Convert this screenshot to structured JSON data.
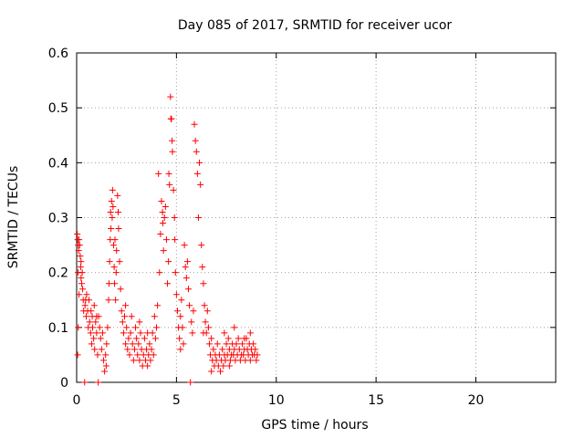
{
  "chart_data": {
    "type": "scatter",
    "title": "Day 085 of 2017, SRMTID for receiver ucor",
    "xlabel": "GPS time / hours",
    "ylabel": "SRMTID / TECUs",
    "xlim": [
      0,
      24
    ],
    "ylim": [
      0,
      0.6
    ],
    "x_ticks": [
      0,
      5,
      10,
      15,
      20
    ],
    "x_tick_labels": [
      "0",
      "5",
      "10",
      "15",
      "20"
    ],
    "y_ticks": [
      0,
      0.1,
      0.2,
      0.3,
      0.4,
      0.5,
      0.6
    ],
    "y_tick_labels": [
      "0",
      "0.1",
      "0.2",
      "0.3",
      "0.4",
      "0.5",
      "0.6"
    ],
    "grid": true,
    "marker": "plus",
    "colors": {
      "series": "#ff0000",
      "axis": "#000000",
      "grid": "#a0a0a0"
    },
    "series": [
      {
        "name": "SRMTID",
        "points": [
          [
            0.03,
            0.27
          ],
          [
            0.05,
            0.26
          ],
          [
            0.08,
            0.25
          ],
          [
            0.1,
            0.24
          ],
          [
            0.12,
            0.26
          ],
          [
            0.15,
            0.25
          ],
          [
            0.18,
            0.23
          ],
          [
            0.05,
            0.05
          ],
          [
            0.08,
            0.1
          ],
          [
            0.12,
            0.16
          ],
          [
            0.2,
            0.21
          ],
          [
            0.22,
            0.19
          ],
          [
            0.25,
            0.18
          ],
          [
            0.28,
            0.2
          ],
          [
            0.3,
            0.17
          ],
          [
            0.33,
            0.15
          ],
          [
            0.35,
            0.13
          ],
          [
            0.4,
            0.0
          ],
          [
            0.42,
            0.14
          ],
          [
            0.45,
            0.15
          ],
          [
            0.48,
            0.12
          ],
          [
            0.5,
            0.16
          ],
          [
            0.55,
            0.13
          ],
          [
            0.58,
            0.1
          ],
          [
            0.62,
            0.15
          ],
          [
            0.65,
            0.11
          ],
          [
            0.7,
            0.09
          ],
          [
            0.72,
            0.13
          ],
          [
            0.75,
            0.07
          ],
          [
            0.78,
            0.12
          ],
          [
            0.8,
            0.1
          ],
          [
            0.85,
            0.08
          ],
          [
            0.88,
            0.14
          ],
          [
            0.9,
            0.06
          ],
          [
            0.95,
            0.11
          ],
          [
            1.0,
            0.09
          ],
          [
            1.05,
            0.05
          ],
          [
            1.08,
            0.0
          ],
          [
            1.1,
            0.12
          ],
          [
            1.15,
            0.1
          ],
          [
            1.2,
            0.08
          ],
          [
            1.25,
            0.06
          ],
          [
            1.3,
            0.09
          ],
          [
            1.35,
            0.04
          ],
          [
            1.4,
            0.02
          ],
          [
            1.45,
            0.05
          ],
          [
            1.48,
            0.03
          ],
          [
            1.5,
            0.07
          ],
          [
            1.55,
            0.1
          ],
          [
            1.6,
            0.15
          ],
          [
            1.62,
            0.18
          ],
          [
            1.65,
            0.22
          ],
          [
            1.68,
            0.26
          ],
          [
            1.7,
            0.31
          ],
          [
            1.72,
            0.28
          ],
          [
            1.75,
            0.33
          ],
          [
            1.78,
            0.3
          ],
          [
            1.8,
            0.35
          ],
          [
            1.82,
            0.32
          ],
          [
            1.85,
            0.25
          ],
          [
            1.88,
            0.21
          ],
          [
            1.9,
            0.18
          ],
          [
            1.92,
            0.26
          ],
          [
            1.95,
            0.15
          ],
          [
            1.98,
            0.2
          ],
          [
            2.0,
            0.24
          ],
          [
            2.05,
            0.34
          ],
          [
            2.08,
            0.31
          ],
          [
            2.1,
            0.28
          ],
          [
            2.15,
            0.22
          ],
          [
            2.2,
            0.17
          ],
          [
            2.25,
            0.13
          ],
          [
            2.3,
            0.11
          ],
          [
            2.35,
            0.09
          ],
          [
            2.4,
            0.12
          ],
          [
            2.45,
            0.07
          ],
          [
            2.5,
            0.1
          ],
          [
            2.55,
            0.06
          ],
          [
            2.6,
            0.08
          ],
          [
            2.65,
            0.05
          ],
          [
            2.7,
            0.09
          ],
          [
            2.75,
            0.12
          ],
          [
            2.8,
            0.07
          ],
          [
            2.85,
            0.04
          ],
          [
            2.9,
            0.06
          ],
          [
            2.95,
            0.1
          ],
          [
            3.0,
            0.08
          ],
          [
            3.05,
            0.05
          ],
          [
            3.1,
            0.07
          ],
          [
            3.15,
            0.04
          ],
          [
            3.2,
            0.09
          ],
          [
            3.25,
            0.06
          ],
          [
            3.3,
            0.03
          ],
          [
            3.35,
            0.05
          ],
          [
            3.4,
            0.08
          ],
          [
            3.45,
            0.04
          ],
          [
            3.5,
            0.06
          ],
          [
            3.55,
            0.03
          ],
          [
            3.6,
            0.05
          ],
          [
            3.65,
            0.07
          ],
          [
            3.7,
            0.04
          ],
          [
            3.75,
            0.06
          ],
          [
            3.8,
            0.09
          ],
          [
            3.85,
            0.05
          ],
          [
            3.9,
            0.12
          ],
          [
            3.95,
            0.08
          ],
          [
            4.0,
            0.1
          ],
          [
            4.05,
            0.14
          ],
          [
            4.1,
            0.38
          ],
          [
            4.15,
            0.2
          ],
          [
            4.2,
            0.27
          ],
          [
            4.25,
            0.33
          ],
          [
            4.3,
            0.31
          ],
          [
            4.32,
            0.29
          ],
          [
            4.35,
            0.24
          ],
          [
            4.4,
            0.3
          ],
          [
            4.45,
            0.32
          ],
          [
            4.5,
            0.26
          ],
          [
            4.55,
            0.18
          ],
          [
            4.6,
            0.22
          ],
          [
            4.62,
            0.38
          ],
          [
            4.65,
            0.36
          ],
          [
            4.7,
            0.52
          ],
          [
            4.72,
            0.48
          ],
          [
            4.75,
            0.48
          ],
          [
            4.78,
            0.44
          ],
          [
            4.8,
            0.42
          ],
          [
            4.85,
            0.35
          ],
          [
            4.9,
            0.3
          ],
          [
            4.92,
            0.26
          ],
          [
            4.95,
            0.2
          ],
          [
            5.0,
            0.16
          ],
          [
            5.05,
            0.13
          ],
          [
            5.1,
            0.1
          ],
          [
            5.15,
            0.08
          ],
          [
            5.2,
            0.12
          ],
          [
            5.25,
            0.15
          ],
          [
            5.3,
            0.1
          ],
          [
            5.35,
            0.07
          ],
          [
            5.4,
            0.25
          ],
          [
            5.45,
            0.21
          ],
          [
            5.5,
            0.19
          ],
          [
            5.55,
            0.22
          ],
          [
            5.6,
            0.17
          ],
          [
            5.65,
            0.14
          ],
          [
            5.7,
            0.0
          ],
          [
            5.75,
            0.11
          ],
          [
            5.8,
            0.09
          ],
          [
            5.85,
            0.13
          ],
          [
            5.9,
            0.47
          ],
          [
            5.95,
            0.44
          ],
          [
            6.0,
            0.42
          ],
          [
            6.05,
            0.38
          ],
          [
            6.1,
            0.3
          ],
          [
            6.15,
            0.4
          ],
          [
            6.2,
            0.36
          ],
          [
            6.25,
            0.25
          ],
          [
            6.3,
            0.21
          ],
          [
            6.35,
            0.18
          ],
          [
            6.4,
            0.14
          ],
          [
            6.45,
            0.11
          ],
          [
            6.5,
            0.09
          ],
          [
            6.55,
            0.13
          ],
          [
            6.6,
            0.1
          ],
          [
            6.65,
            0.07
          ],
          [
            6.7,
            0.05
          ],
          [
            6.75,
            0.08
          ],
          [
            6.8,
            0.04
          ],
          [
            6.85,
            0.06
          ],
          [
            6.9,
            0.03
          ],
          [
            6.95,
            0.05
          ],
          [
            7.0,
            0.04
          ],
          [
            7.05,
            0.07
          ],
          [
            7.1,
            0.03
          ],
          [
            7.15,
            0.05
          ],
          [
            7.2,
            0.02
          ],
          [
            7.25,
            0.04
          ],
          [
            7.3,
            0.06
          ],
          [
            7.35,
            0.03
          ],
          [
            7.4,
            0.05
          ],
          [
            7.45,
            0.04
          ],
          [
            7.5,
            0.07
          ],
          [
            7.55,
            0.05
          ],
          [
            7.6,
            0.08
          ],
          [
            7.65,
            0.06
          ],
          [
            7.7,
            0.04
          ],
          [
            7.75,
            0.05
          ],
          [
            7.8,
            0.07
          ],
          [
            7.85,
            0.05
          ],
          [
            7.9,
            0.06
          ],
          [
            7.95,
            0.04
          ],
          [
            8.0,
            0.07
          ],
          [
            8.05,
            0.05
          ],
          [
            8.1,
            0.08
          ],
          [
            8.15,
            0.06
          ],
          [
            8.2,
            0.04
          ],
          [
            8.25,
            0.05
          ],
          [
            8.3,
            0.07
          ],
          [
            8.35,
            0.05
          ],
          [
            8.4,
            0.06
          ],
          [
            8.45,
            0.04
          ],
          [
            8.5,
            0.08
          ],
          [
            8.55,
            0.06
          ],
          [
            8.6,
            0.05
          ],
          [
            8.65,
            0.07
          ],
          [
            8.7,
            0.04
          ],
          [
            8.75,
            0.06
          ],
          [
            8.8,
            0.05
          ],
          [
            8.85,
            0.07
          ],
          [
            8.9,
            0.05
          ],
          [
            8.95,
            0.06
          ],
          [
            9.0,
            0.04
          ],
          [
            9.05,
            0.05
          ],
          [
            7.4,
            0.09
          ],
          [
            7.9,
            0.1
          ],
          [
            8.4,
            0.08
          ],
          [
            8.7,
            0.09
          ],
          [
            0.07,
            0.2
          ],
          [
            0.22,
            0.22
          ],
          [
            1.0,
            0.12
          ],
          [
            2.45,
            0.14
          ],
          [
            3.15,
            0.11
          ],
          [
            3.55,
            0.09
          ],
          [
            5.2,
            0.06
          ],
          [
            6.35,
            0.09
          ],
          [
            6.75,
            0.02
          ],
          [
            7.65,
            0.03
          ]
        ]
      }
    ]
  }
}
